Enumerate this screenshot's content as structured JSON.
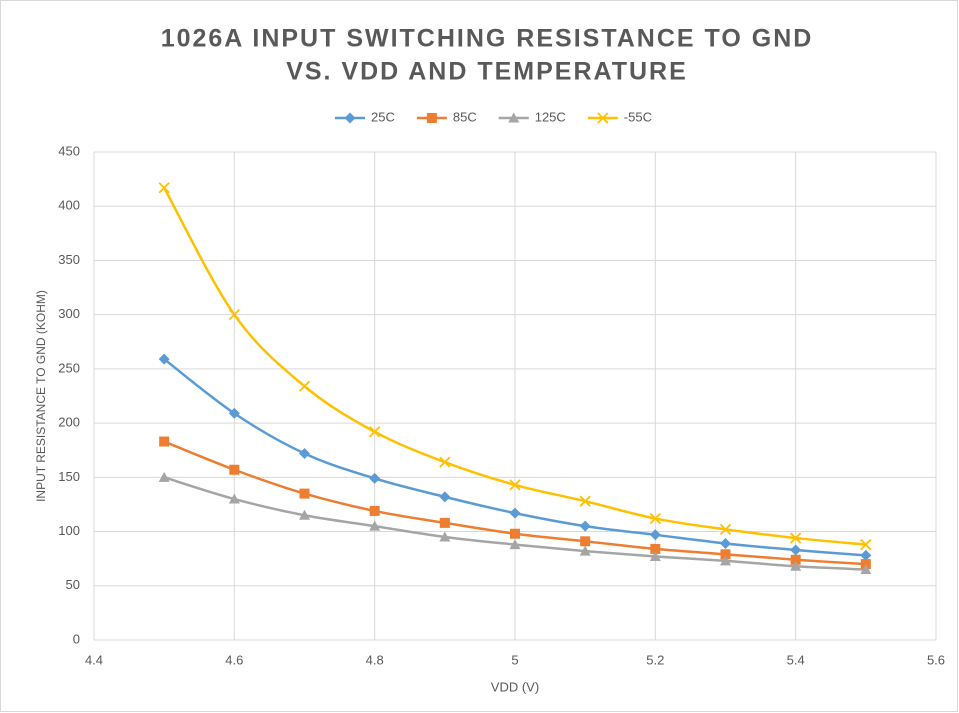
{
  "chart_data": {
    "type": "line",
    "title": [
      "1026A INPUT SWITCHING RESISTANCE TO GND",
      "VS.  VDD AND TEMPERATURE"
    ],
    "x_label": "VDD (V)",
    "y_label": "INPUT RESISTANCE TO GND (KOHM)",
    "x": [
      4.5,
      4.6,
      4.7,
      4.8,
      4.9,
      5,
      5.1,
      5.2,
      5.3,
      5.4,
      5.5
    ],
    "series": [
      {
        "name": "25C",
        "color": "#5b9bd5",
        "marker": "diamond",
        "values": [
          259,
          209,
          172,
          149,
          132,
          117,
          105,
          97,
          89,
          83,
          78
        ]
      },
      {
        "name": "85C",
        "color": "#ed7d31",
        "marker": "square",
        "values": [
          183,
          157,
          135,
          119,
          108,
          98,
          91,
          84,
          79,
          74,
          70
        ]
      },
      {
        "name": "125C",
        "color": "#a5a5a5",
        "marker": "triangle",
        "values": [
          150,
          130,
          115,
          105,
          95,
          88,
          82,
          77,
          73,
          68,
          65
        ]
      },
      {
        "name": "-55C",
        "color": "#ffc000",
        "marker": "x",
        "values": [
          417,
          300,
          234,
          192,
          164,
          143,
          128,
          112,
          102,
          94,
          88
        ]
      }
    ],
    "xlim": [
      4.4,
      5.6
    ],
    "xticks": [
      4.4,
      4.6,
      4.8,
      5,
      5.2,
      5.4,
      5.6
    ],
    "ylim": [
      0,
      450
    ],
    "yticks": [
      0,
      50,
      100,
      150,
      200,
      250,
      300,
      350,
      400,
      450
    ],
    "grid": true,
    "legend": "top",
    "smooth": true
  }
}
